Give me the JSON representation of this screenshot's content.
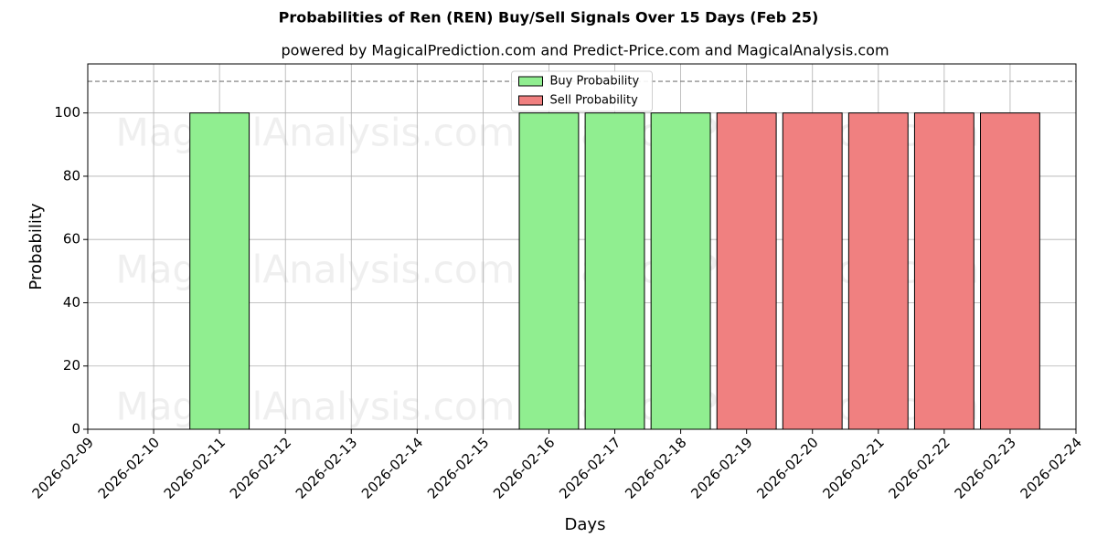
{
  "chart_data": {
    "type": "bar",
    "title": "Probabilities of Ren (REN) Buy/Sell Signals Over 15 Days (Feb 25)",
    "subtitle": "powered by MagicalPrediction.com and Predict-Price.com and MagicalAnalysis.com",
    "x_label": "Days",
    "y_label": "Probability",
    "x": [
      "2026-02-11",
      "2026-02-16",
      "2026-02-17",
      "2026-02-18",
      "2026-02-19",
      "2026-02-20",
      "2026-02-21",
      "2026-02-22",
      "2026-02-23"
    ],
    "series": [
      {
        "name": "Buy Probability",
        "color": "#90ee90",
        "values": [
          100,
          100,
          100,
          100,
          null,
          null,
          null,
          null,
          null
        ]
      },
      {
        "name": "Sell Probability",
        "color": "#f08080",
        "values": [
          null,
          null,
          null,
          null,
          100,
          100,
          100,
          100,
          100
        ]
      }
    ],
    "xlim": [
      "2026-02-09",
      "2026-02-24"
    ],
    "xticks": [
      "2026-02-09",
      "2026-02-10",
      "2026-02-11",
      "2026-02-12",
      "2026-02-13",
      "2026-02-14",
      "2026-02-15",
      "2026-02-16",
      "2026-02-17",
      "2026-02-18",
      "2026-02-19",
      "2026-02-20",
      "2026-02-21",
      "2026-02-22",
      "2026-02-23",
      "2026-02-24"
    ],
    "ylim": [
      0,
      115.5
    ],
    "yticks": [
      0,
      20,
      40,
      60,
      80,
      100
    ],
    "hline": 110,
    "grid": true,
    "legend": "upper center",
    "watermarks": [
      "MagicalAnalysis.com",
      "MagicalPrediction.com"
    ]
  }
}
